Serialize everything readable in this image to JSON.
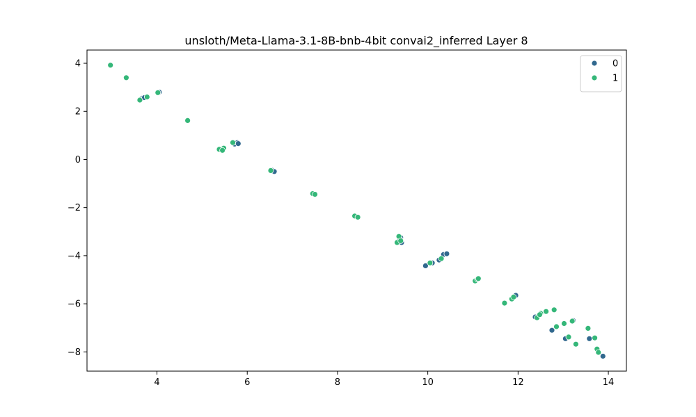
{
  "chart_data": {
    "type": "scatter",
    "title": "unsloth/Meta-Llama-3.1-8B-bnb-4bit convai2_inferred Layer 8",
    "xlabel": "",
    "ylabel": "",
    "xlim": [
      2.45,
      14.4
    ],
    "ylim": [
      -8.8,
      4.55
    ],
    "xticks": [
      4,
      6,
      8,
      10,
      12,
      14
    ],
    "yticks": [
      -8,
      -6,
      -4,
      -2,
      0,
      2,
      4
    ],
    "xtick_labels": [
      "4",
      "6",
      "8",
      "10",
      "12",
      "14"
    ],
    "ytick_labels": [
      "−8",
      "−6",
      "−4",
      "−2",
      "0",
      "2",
      "4"
    ],
    "grid": false,
    "legend_position": "top-right",
    "series": [
      {
        "name": "0",
        "color": "#31688e",
        "points": [
          [
            3.68,
            2.55
          ],
          [
            3.72,
            2.57
          ],
          [
            4.05,
            2.8
          ],
          [
            5.72,
            0.64
          ],
          [
            5.78,
            0.7
          ],
          [
            5.8,
            0.66
          ],
          [
            6.55,
            -0.45
          ],
          [
            6.6,
            -0.5
          ],
          [
            9.4,
            -3.25
          ],
          [
            9.42,
            -3.45
          ],
          [
            9.38,
            -3.3
          ],
          [
            9.95,
            -4.42
          ],
          [
            10.1,
            -4.3
          ],
          [
            10.25,
            -4.18
          ],
          [
            10.35,
            -3.95
          ],
          [
            10.42,
            -3.92
          ],
          [
            11.95,
            -5.65
          ],
          [
            11.88,
            -5.75
          ],
          [
            12.38,
            -6.55
          ],
          [
            12.75,
            -7.1
          ],
          [
            13.05,
            -7.45
          ],
          [
            13.22,
            -6.7
          ],
          [
            13.58,
            -7.45
          ],
          [
            13.88,
            -8.18
          ]
        ]
      },
      {
        "name": "1",
        "color": "#35b779",
        "points": [
          [
            2.97,
            3.92
          ],
          [
            3.32,
            3.4
          ],
          [
            3.62,
            2.47
          ],
          [
            3.78,
            2.6
          ],
          [
            4.02,
            2.78
          ],
          [
            4.68,
            1.62
          ],
          [
            5.38,
            0.42
          ],
          [
            5.48,
            0.47
          ],
          [
            5.45,
            0.38
          ],
          [
            5.68,
            0.7
          ],
          [
            6.52,
            -0.46
          ],
          [
            7.45,
            -1.42
          ],
          [
            7.5,
            -1.45
          ],
          [
            8.38,
            -2.35
          ],
          [
            8.45,
            -2.4
          ],
          [
            9.32,
            -3.45
          ],
          [
            9.36,
            -3.2
          ],
          [
            9.4,
            -3.38
          ],
          [
            10.05,
            -4.3
          ],
          [
            10.3,
            -4.12
          ],
          [
            11.05,
            -5.05
          ],
          [
            11.1,
            -4.98
          ],
          [
            11.12,
            -4.95
          ],
          [
            11.7,
            -5.97
          ],
          [
            11.86,
            -5.8
          ],
          [
            11.9,
            -5.72
          ],
          [
            12.42,
            -6.58
          ],
          [
            12.5,
            -6.4
          ],
          [
            12.48,
            -6.45
          ],
          [
            12.62,
            -6.32
          ],
          [
            12.8,
            -6.25
          ],
          [
            12.85,
            -6.95
          ],
          [
            13.02,
            -6.82
          ],
          [
            13.12,
            -7.38
          ],
          [
            13.2,
            -6.72
          ],
          [
            13.28,
            -7.68
          ],
          [
            13.55,
            -7.02
          ],
          [
            13.7,
            -7.42
          ],
          [
            13.75,
            -7.88
          ],
          [
            13.78,
            -8.02
          ]
        ]
      }
    ]
  }
}
